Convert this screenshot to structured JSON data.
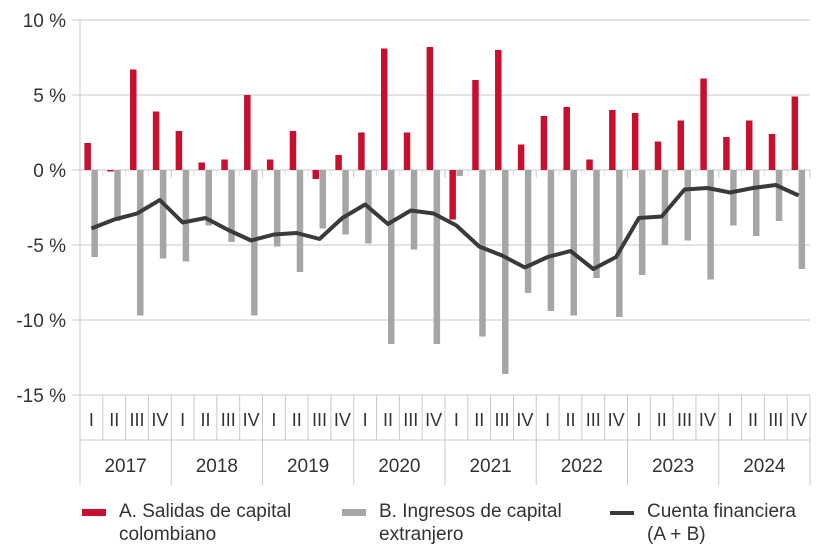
{
  "chart_data": {
    "type": "bar",
    "title": "",
    "ylim": [
      -15,
      10
    ],
    "yticks": [
      10,
      5,
      0,
      -5,
      -10,
      -15
    ],
    "ytick_labels": [
      "10 %",
      "5 %",
      "0 %",
      "-5 %",
      "-10 %",
      "-15 %"
    ],
    "years": [
      "2017",
      "2018",
      "2019",
      "2020",
      "2021",
      "2022",
      "2023",
      "2024"
    ],
    "quarters": [
      "I",
      "II",
      "III",
      "IV"
    ],
    "grid": true,
    "legend_position": "bottom",
    "series": [
      {
        "name": "A. Salidas de capital colombiano",
        "type": "bar",
        "color": "#c8102e",
        "values": [
          1.8,
          -0.1,
          6.7,
          3.9,
          2.6,
          0.5,
          0.7,
          5.0,
          0.7,
          2.6,
          -0.6,
          1.0,
          2.5,
          8.1,
          2.5,
          8.2,
          -3.3,
          6.0,
          8.0,
          1.7,
          3.6,
          4.2,
          0.7,
          4.0,
          3.8,
          1.9,
          3.3,
          6.1,
          2.2,
          3.3,
          2.4,
          4.9
        ]
      },
      {
        "name": "B. Ingresos de capital extranjero",
        "type": "bar",
        "color": "#a6a6a6",
        "values": [
          -5.8,
          -3.4,
          -9.7,
          -5.9,
          -6.1,
          -3.7,
          -4.8,
          -9.7,
          -5.1,
          -6.8,
          -3.9,
          -4.3,
          -4.9,
          -11.6,
          -5.3,
          -11.6,
          -0.4,
          -11.1,
          -13.6,
          -8.2,
          -9.4,
          -9.7,
          -7.2,
          -9.8,
          -7.0,
          -5.0,
          -4.7,
          -7.3,
          -3.7,
          -4.4,
          -3.4,
          -6.6
        ]
      },
      {
        "name": "Cuenta financiera (A + B)",
        "type": "line",
        "color": "#3a3a3a",
        "values": [
          -3.9,
          -3.3,
          -2.9,
          -2.0,
          -3.5,
          -3.2,
          -4.0,
          -4.7,
          -4.3,
          -4.2,
          -4.6,
          -3.2,
          -2.3,
          -3.6,
          -2.7,
          -2.9,
          -3.7,
          -5.1,
          -5.7,
          -6.5,
          -5.8,
          -5.4,
          -6.6,
          -5.8,
          -3.2,
          -3.1,
          -1.3,
          -1.2,
          -1.5,
          -1.2,
          -1.0,
          -1.7
        ]
      }
    ]
  },
  "legend": [
    {
      "line1": "A. Salidas de capital",
      "line2": "colombiano"
    },
    {
      "line1": "B. Ingresos de capital",
      "line2": "extranjero"
    },
    {
      "line1": "Cuenta financiera",
      "line2": "(A + B)"
    }
  ]
}
